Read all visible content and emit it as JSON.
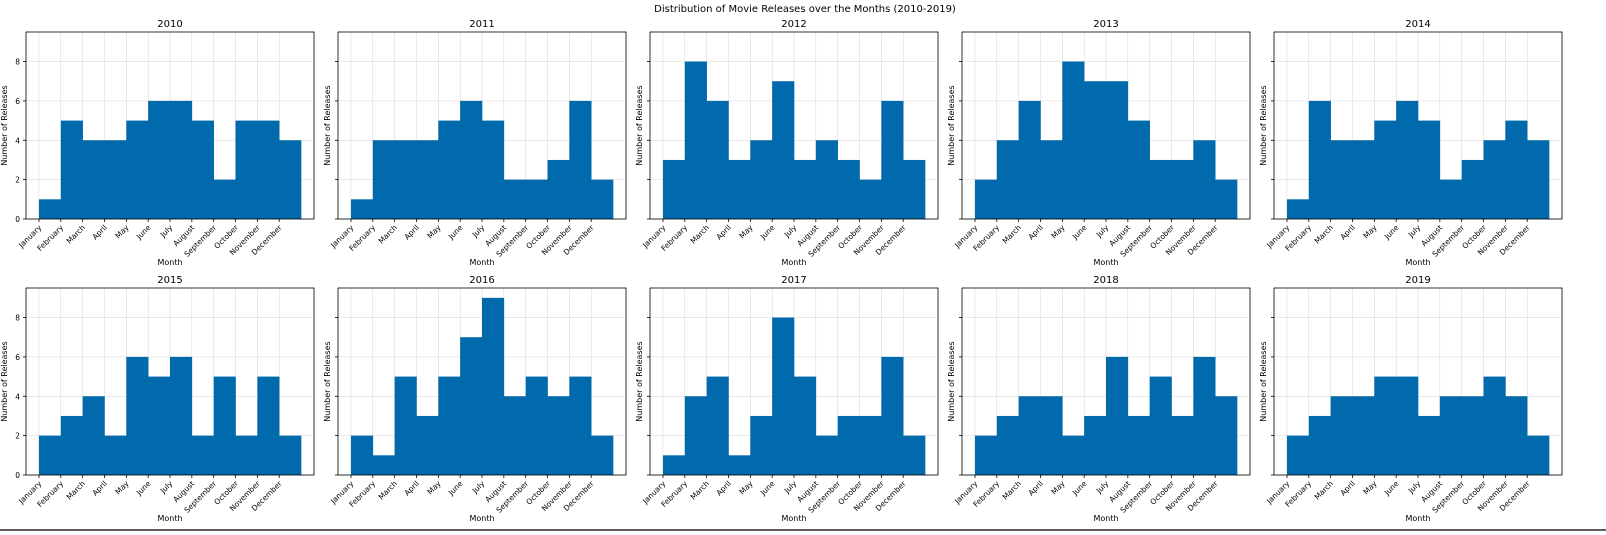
{
  "chart_data": {
    "type": "bar",
    "title": "Distribution of Movie Releases over the Months (2010-2019)",
    "xlabel": "Month",
    "ylabel": "Number of Releases",
    "ylim": [
      0,
      9.5
    ],
    "yticks": [
      0,
      2,
      4,
      6,
      8
    ],
    "grid": true,
    "bar_color": "#006aad",
    "categories": [
      "January",
      "February",
      "March",
      "April",
      "May",
      "June",
      "July",
      "August",
      "September",
      "October",
      "November",
      "December"
    ],
    "panels": [
      {
        "title": "2010",
        "values": [
          1,
          5,
          4,
          4,
          5,
          6,
          6,
          5,
          2,
          5,
          5,
          4
        ]
      },
      {
        "title": "2011",
        "values": [
          1,
          4,
          4,
          4,
          5,
          6,
          5,
          2,
          2,
          3,
          6,
          2
        ]
      },
      {
        "title": "2012",
        "values": [
          3,
          8,
          6,
          3,
          4,
          7,
          3,
          4,
          3,
          2,
          6,
          3
        ]
      },
      {
        "title": "2013",
        "values": [
          2,
          4,
          6,
          4,
          8,
          7,
          7,
          5,
          3,
          3,
          4,
          2
        ]
      },
      {
        "title": "2014",
        "values": [
          1,
          6,
          4,
          4,
          5,
          6,
          5,
          2,
          3,
          4,
          5,
          4
        ]
      },
      {
        "title": "2015",
        "values": [
          2,
          3,
          4,
          2,
          6,
          5,
          6,
          2,
          5,
          2,
          5,
          2
        ]
      },
      {
        "title": "2016",
        "values": [
          2,
          1,
          5,
          3,
          5,
          7,
          9,
          4,
          5,
          4,
          5,
          2
        ]
      },
      {
        "title": "2017",
        "values": [
          1,
          4,
          5,
          1,
          3,
          8,
          5,
          2,
          3,
          3,
          6,
          2
        ]
      },
      {
        "title": "2018",
        "values": [
          2,
          3,
          4,
          4,
          2,
          3,
          6,
          3,
          5,
          3,
          6,
          4
        ]
      },
      {
        "title": "2019",
        "values": [
          2,
          3,
          4,
          4,
          5,
          5,
          3,
          4,
          4,
          5,
          4,
          2
        ]
      }
    ]
  }
}
